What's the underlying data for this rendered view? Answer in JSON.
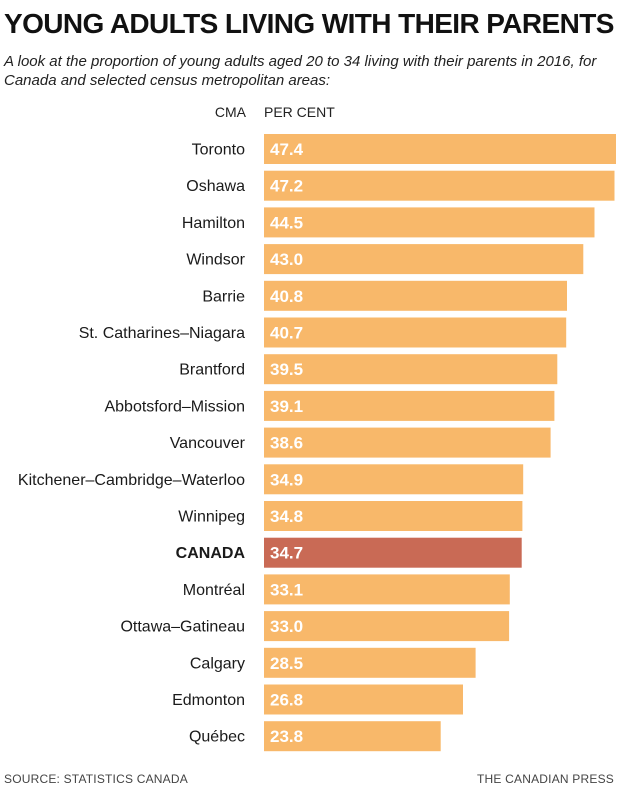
{
  "chart_data": {
    "type": "bar",
    "orientation": "horizontal",
    "title": "YOUNG ADULTS LIVING WITH THEIR PARENTS",
    "subtitle": "A look at the proportion of young adults aged 20 to 34 living with their parents in 2016, for Canada and selected census metropolitan areas:",
    "category_header": "CMA",
    "value_header": "PER CENT",
    "categories": [
      "Toronto",
      "Oshawa",
      "Hamilton",
      "Windsor",
      "Barrie",
      "St. Catharines–Niagara",
      "Brantford",
      "Abbotsford–Mission",
      "Vancouver",
      "Kitchener–Cambridge–Waterloo",
      "Winnipeg",
      "CANADA",
      "Montréal",
      "Ottawa–Gatineau",
      "Calgary",
      "Edmonton",
      "Québec"
    ],
    "values": [
      47.4,
      47.2,
      44.5,
      43.0,
      40.8,
      40.7,
      39.5,
      39.1,
      38.6,
      34.9,
      34.8,
      34.7,
      33.1,
      33.0,
      28.5,
      26.8,
      23.8
    ],
    "value_labels": [
      "47.4",
      "47.2",
      "44.5",
      "43.0",
      "40.8",
      "40.7",
      "39.5",
      "39.1",
      "38.6",
      "34.9",
      "34.8",
      "34.7",
      "33.1",
      "33.0",
      "28.5",
      "26.8",
      "23.8"
    ],
    "highlight_category": "CANADA",
    "xlim": [
      0,
      47.4
    ],
    "grid": false,
    "legend": "none",
    "colors": {
      "bar": "#f8b86a",
      "highlight": "#c96a55",
      "label_text": "#ffffff"
    },
    "source": "SOURCE: STATISTICS CANADA",
    "credit": "THE CANADIAN PRESS"
  }
}
